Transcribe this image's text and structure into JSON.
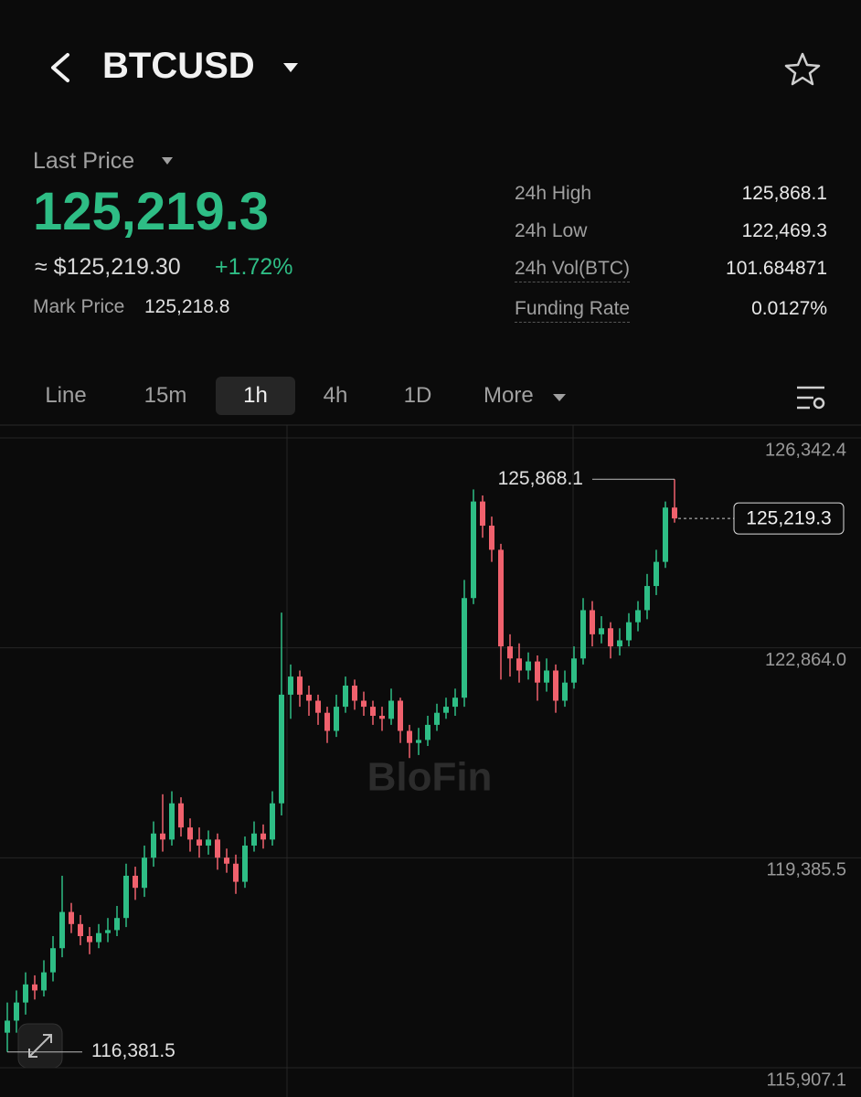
{
  "header": {
    "symbol": "BTCUSD"
  },
  "price": {
    "label": "Last Price",
    "last": "125,219.3",
    "usd": "≈ $125,219.30",
    "change": "+1.72%",
    "mark_label": "Mark Price",
    "mark": "125,218.8"
  },
  "stats": [
    {
      "label": "24h High",
      "value": "125,868.1"
    },
    {
      "label": "24h Low",
      "value": "122,469.3"
    },
    {
      "label": "24h Vol(BTC)",
      "value": "101.684871"
    },
    {
      "label": "Funding Rate",
      "value": "0.0127%"
    }
  ],
  "tabs": [
    "Line",
    "15m",
    "1h",
    "4h",
    "1D",
    "More"
  ],
  "active_tab": 2,
  "chart_data": {
    "type": "candlestick",
    "watermark": "BloFin",
    "up_color": "#2ebd85",
    "down_color": "#f0616d",
    "ylim": [
      115665,
      126766
    ],
    "yticks": [
      {
        "value": 115907.1,
        "label": "115,907.1"
      },
      {
        "value": 119385.5,
        "label": "119,385.5"
      },
      {
        "value": 122864.0,
        "label": "122,864.0"
      },
      {
        "value": 126342.4,
        "label": "126,342.4"
      }
    ],
    "grid": true,
    "high": {
      "value": 125868.1,
      "label": "125,868.1"
    },
    "low": {
      "value": 116381.5,
      "label": "116,381.5"
    },
    "current": {
      "value": 125219.3,
      "label": "125,219.3"
    },
    "ohlc": [
      [
        116700,
        117200,
        116381.5,
        116900
      ],
      [
        116900,
        117400,
        116700,
        117200
      ],
      [
        117200,
        117700,
        117000,
        117500
      ],
      [
        117500,
        117650,
        117250,
        117400
      ],
      [
        117400,
        117900,
        117300,
        117700
      ],
      [
        117700,
        118300,
        117550,
        118100
      ],
      [
        118100,
        119300,
        117950,
        118700
      ],
      [
        118700,
        118850,
        118350,
        118500
      ],
      [
        118500,
        118650,
        118150,
        118300
      ],
      [
        118300,
        118450,
        118000,
        118200
      ],
      [
        118200,
        118500,
        118100,
        118350
      ],
      [
        118350,
        118600,
        118200,
        118400
      ],
      [
        118400,
        118800,
        118300,
        118600
      ],
      [
        118600,
        119500,
        118450,
        119300
      ],
      [
        119300,
        119450,
        118900,
        119100
      ],
      [
        119100,
        119800,
        118950,
        119600
      ],
      [
        119600,
        120200,
        119450,
        120000
      ],
      [
        120000,
        120650,
        119700,
        119900
      ],
      [
        119900,
        120700,
        119800,
        120500
      ],
      [
        120500,
        120600,
        119950,
        120100
      ],
      [
        120100,
        120250,
        119700,
        119900
      ],
      [
        119900,
        120100,
        119600,
        119800
      ],
      [
        119800,
        120050,
        119650,
        119900
      ],
      [
        119900,
        120000,
        119400,
        119600
      ],
      [
        119600,
        119750,
        119350,
        119500
      ],
      [
        119500,
        119650,
        119000,
        119200
      ],
      [
        119200,
        119950,
        119100,
        119800
      ],
      [
        119800,
        120200,
        119700,
        120000
      ],
      [
        120000,
        120150,
        119750,
        119900
      ],
      [
        119900,
        120700,
        119800,
        120500
      ],
      [
        120500,
        123660,
        120300,
        122300
      ],
      [
        122300,
        122800,
        121900,
        122600
      ],
      [
        122600,
        122700,
        122100,
        122300
      ],
      [
        122300,
        122450,
        121950,
        122200
      ],
      [
        122200,
        122300,
        121800,
        122000
      ],
      [
        122000,
        122100,
        121500,
        121700
      ],
      [
        121700,
        122300,
        121600,
        122100
      ],
      [
        122100,
        122600,
        122000,
        122450
      ],
      [
        122450,
        122550,
        122050,
        122200
      ],
      [
        122200,
        122350,
        121950,
        122100
      ],
      [
        122100,
        122200,
        121800,
        121950
      ],
      [
        121950,
        122100,
        121700,
        121900
      ],
      [
        121900,
        122400,
        121800,
        122200
      ],
      [
        122200,
        122250,
        121500,
        121700
      ],
      [
        121700,
        121800,
        121250,
        121500
      ],
      [
        121500,
        121750,
        121300,
        121550
      ],
      [
        121550,
        121950,
        121450,
        121800
      ],
      [
        121800,
        122150,
        121700,
        122000
      ],
      [
        122000,
        122250,
        121900,
        122100
      ],
      [
        122100,
        122400,
        121950,
        122250
      ],
      [
        122250,
        124200,
        122100,
        123900
      ],
      [
        123900,
        125700,
        123800,
        125500
      ],
      [
        125500,
        125600,
        124900,
        125100
      ],
      [
        125100,
        125250,
        124500,
        124700
      ],
      [
        124700,
        124800,
        122550,
        123100
      ],
      [
        123100,
        123300,
        122600,
        122900
      ],
      [
        122900,
        123150,
        122500,
        122700
      ],
      [
        122700,
        123000,
        122550,
        122850
      ],
      [
        122850,
        122950,
        122200,
        122500
      ],
      [
        122500,
        122900,
        122350,
        122700
      ],
      [
        122700,
        122800,
        122000,
        122200
      ],
      [
        122200,
        122700,
        122100,
        122500
      ],
      [
        122500,
        123100,
        122400,
        122900
      ],
      [
        122900,
        123900,
        122800,
        123700
      ],
      [
        123700,
        123850,
        123100,
        123300
      ],
      [
        123300,
        123600,
        123150,
        123400
      ],
      [
        123400,
        123500,
        122900,
        123100
      ],
      [
        123100,
        123400,
        122950,
        123200
      ],
      [
        123200,
        123650,
        123100,
        123500
      ],
      [
        123500,
        123850,
        123350,
        123700
      ],
      [
        123700,
        124300,
        123550,
        124100
      ],
      [
        124100,
        124700,
        123950,
        124500
      ],
      [
        124500,
        125500,
        124400,
        125400
      ],
      [
        125400,
        125868.1,
        125150,
        125219.3
      ]
    ]
  }
}
